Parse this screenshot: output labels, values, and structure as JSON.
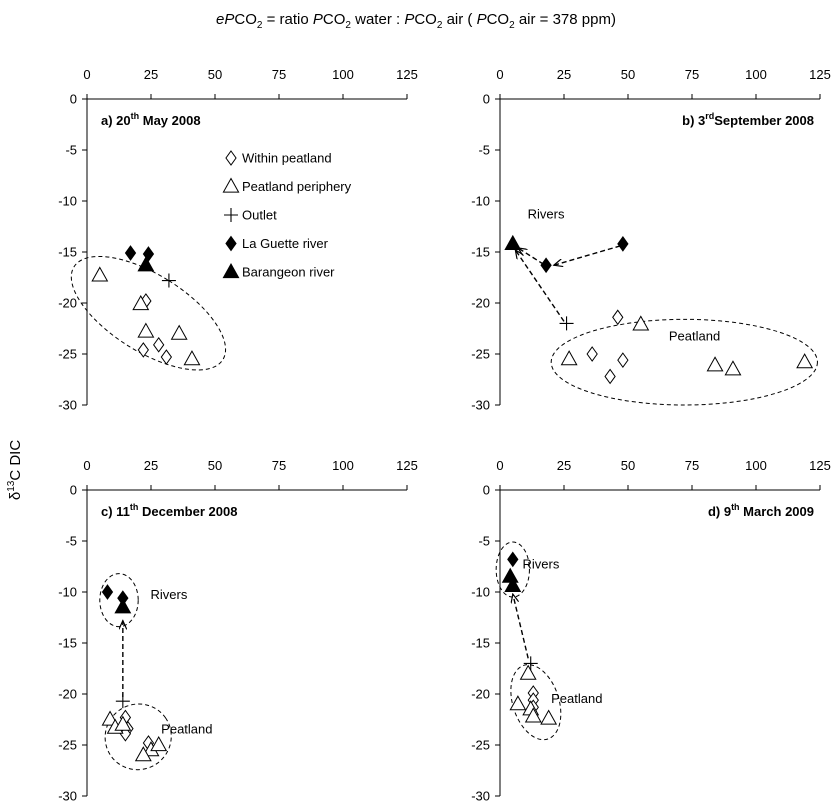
{
  "figure": {
    "title": {
      "p1": "eP",
      "s1": "CO",
      "sub1": "2",
      "s2": " = ratio ",
      "p2": "P",
      "s3": "CO",
      "sub2": "2",
      "s4": " water : ",
      "p3": "P",
      "s5": "CO",
      "sub3": "2",
      "s6": " air ( ",
      "p4": "P",
      "s7": "CO",
      "sub4": "2",
      "s8": " air = 378 ppm)"
    },
    "ylabel": {
      "pre": "δ",
      "sup": "13",
      "post": "C  DIC"
    }
  },
  "chart_data": [
    {
      "type": "scatter",
      "panel": "a",
      "title": {
        "pre": "a) 20",
        "sup": "th",
        "post": "  May 2008"
      },
      "xlim": [
        0,
        125
      ],
      "ylim": [
        -30,
        0
      ],
      "xticks": [
        "0",
        "25",
        "50",
        "75",
        "100",
        "125"
      ],
      "yticks": [
        "0",
        "-5",
        "-10",
        "-15",
        "-20",
        "-25",
        "-30"
      ],
      "legend": [
        {
          "marker": "diamond-open",
          "label": "Within peatland"
        },
        {
          "marker": "triangle-open",
          "label": "Peatland periphery"
        },
        {
          "marker": "plus",
          "label": "Outlet"
        },
        {
          "marker": "diamond-filled",
          "label": "La Guette river"
        },
        {
          "marker": "triangle-filled",
          "label": "Barangeon river"
        }
      ],
      "series": [
        {
          "name": "Within peatland",
          "marker": "diamond-open",
          "points": [
            [
              23,
              -19.8
            ],
            [
              22,
              -24.6
            ],
            [
              28,
              -24.1
            ],
            [
              31,
              -25.3
            ]
          ]
        },
        {
          "name": "Peatland periphery",
          "marker": "triangle-open",
          "points": [
            [
              5,
              -17.3
            ],
            [
              21,
              -20.1
            ],
            [
              23,
              -22.8
            ],
            [
              36,
              -23.0
            ],
            [
              41,
              -25.5
            ]
          ]
        },
        {
          "name": "Outlet",
          "marker": "plus",
          "points": [
            [
              32,
              -17.8
            ]
          ]
        },
        {
          "name": "La Guette river",
          "marker": "diamond-filled",
          "points": [
            [
              17,
              -15.1
            ],
            [
              24,
              -15.2
            ]
          ]
        },
        {
          "name": "Barangeon river",
          "marker": "triangle-filled",
          "points": [
            [
              23,
              -16.3
            ]
          ]
        }
      ],
      "annotations": [],
      "ellipses": [
        {
          "cx": 24,
          "cy": -21,
          "rx": 15,
          "ry": 8.6,
          "rot": -58
        }
      ],
      "arrows": []
    },
    {
      "type": "scatter",
      "panel": "b",
      "title": {
        "pre": "b) 3",
        "sup": "rd",
        "post": "September 2008"
      },
      "xlim": [
        0,
        125
      ],
      "ylim": [
        -30,
        0
      ],
      "xticks": [
        "0",
        "25",
        "50",
        "75",
        "100",
        "125"
      ],
      "yticks": [
        "0",
        "-5",
        "-10",
        "-15",
        "-20",
        "-25",
        "-30"
      ],
      "legend": [],
      "series": [
        {
          "name": "Within peatland",
          "marker": "diamond-open",
          "points": [
            [
              36,
              -25.0
            ],
            [
              43,
              -27.2
            ],
            [
              46,
              -21.4
            ],
            [
              48,
              -25.6
            ]
          ]
        },
        {
          "name": "Peatland periphery",
          "marker": "triangle-open",
          "points": [
            [
              27,
              -25.5
            ],
            [
              55,
              -22.1
            ],
            [
              84,
              -26.1
            ],
            [
              91,
              -26.5
            ],
            [
              119,
              -25.8
            ]
          ]
        },
        {
          "name": "Outlet",
          "marker": "plus",
          "points": [
            [
              26,
              -22.0
            ]
          ]
        },
        {
          "name": "La Guette river",
          "marker": "diamond-filled",
          "points": [
            [
              18,
              -16.3
            ],
            [
              48,
              -14.2
            ]
          ]
        },
        {
          "name": "Barangeon river",
          "marker": "triangle-filled",
          "points": [
            [
              5,
              -14.2
            ]
          ]
        }
      ],
      "annotations": [
        {
          "text": "Rivers",
          "x": 18,
          "y": -11.3
        },
        {
          "text": "Peatland",
          "x": 76,
          "y": -23.3
        }
      ],
      "ellipses": [
        {
          "cx": 72,
          "cy": -25.8,
          "rx": 52,
          "ry": 4.2,
          "rot": 0
        }
      ],
      "arrows": [
        {
          "from": [
            47,
            -14.4
          ],
          "to": [
            21,
            -16.3
          ]
        },
        {
          "from": [
            17,
            -16.2
          ],
          "to": [
            7,
            -14.6
          ]
        },
        {
          "from": [
            25,
            -21.8
          ],
          "to": [
            6,
            -14.8
          ]
        }
      ]
    },
    {
      "type": "scatter",
      "panel": "c",
      "title": {
        "pre": "c) 11",
        "sup": "th",
        "post": "  December 2008"
      },
      "xlim": [
        0,
        125
      ],
      "ylim": [
        -30,
        0
      ],
      "xticks": [
        "0",
        "25",
        "50",
        "75",
        "100",
        "125"
      ],
      "yticks": [
        "0",
        "-5",
        "-10",
        "-15",
        "-20",
        "-25",
        "-30"
      ],
      "legend": [],
      "series": [
        {
          "name": "Within peatland",
          "marker": "diamond-open",
          "points": [
            [
              15,
              -22.3
            ],
            [
              16,
              -23.4
            ],
            [
              15,
              -23.9
            ],
            [
              24,
              -24.8
            ]
          ]
        },
        {
          "name": "Peatland periphery",
          "marker": "triangle-open",
          "points": [
            [
              9,
              -22.5
            ],
            [
              11,
              -23.3
            ],
            [
              14,
              -23.0
            ],
            [
              25,
              -25.5
            ],
            [
              28,
              -25.0
            ],
            [
              22,
              -26.0
            ]
          ]
        },
        {
          "name": "Outlet",
          "marker": "plus",
          "points": [
            [
              14,
              -20.7
            ]
          ]
        },
        {
          "name": "La Guette river",
          "marker": "diamond-filled",
          "points": [
            [
              8,
              -10.0
            ],
            [
              14,
              -10.6
            ]
          ]
        },
        {
          "name": "Barangeon river",
          "marker": "triangle-filled",
          "points": [
            [
              14,
              -11.5
            ]
          ]
        }
      ],
      "annotations": [
        {
          "text": "Rivers",
          "x": 32,
          "y": -10.3
        },
        {
          "text": "Peatland",
          "x": 39,
          "y": -23.5
        }
      ],
      "ellipses": [
        {
          "cx": 12.5,
          "cy": -10.8,
          "rx": 7.5,
          "ry": 2.6,
          "rot": 0
        },
        {
          "cx": 20,
          "cy": -24.2,
          "rx": 13,
          "ry": 3.2,
          "rot": -35
        }
      ],
      "arrows": [
        {
          "from": [
            14,
            -20.3
          ],
          "to": [
            14,
            -12.8
          ]
        }
      ]
    },
    {
      "type": "scatter",
      "panel": "d",
      "title": {
        "pre": "d) 9",
        "sup": "th",
        "post": "  March 2009"
      },
      "xlim": [
        0,
        125
      ],
      "ylim": [
        -30,
        0
      ],
      "xticks": [
        "0",
        "25",
        "50",
        "75",
        "100",
        "125"
      ],
      "yticks": [
        "0",
        "-5",
        "-10",
        "-15",
        "-20",
        "-25",
        "-30"
      ],
      "legend": [],
      "series": [
        {
          "name": "Within peatland",
          "marker": "diamond-open",
          "points": [
            [
              13,
              -19.9
            ],
            [
              13,
              -20.6
            ],
            [
              13,
              -21.3
            ]
          ]
        },
        {
          "name": "Peatland periphery",
          "marker": "triangle-open",
          "points": [
            [
              11,
              -18.0
            ],
            [
              7,
              -21.0
            ],
            [
              12,
              -21.5
            ],
            [
              13,
              -22.2
            ],
            [
              19,
              -22.4
            ]
          ]
        },
        {
          "name": "Outlet",
          "marker": "plus",
          "points": [
            [
              12,
              -17.0
            ]
          ]
        },
        {
          "name": "La Guette river",
          "marker": "diamond-filled",
          "points": [
            [
              5,
              -6.8
            ]
          ]
        },
        {
          "name": "Barangeon river",
          "marker": "triangle-filled",
          "points": [
            [
              4,
              -8.5
            ],
            [
              5,
              -9.4
            ]
          ]
        }
      ],
      "annotations": [
        {
          "text": "Rivers",
          "x": 16,
          "y": -7.3
        },
        {
          "text": "Peatland",
          "x": 30,
          "y": -20.5
        }
      ],
      "ellipses": [
        {
          "cx": 5,
          "cy": -7.8,
          "rx": 6.5,
          "ry": 2.7,
          "rot": 0
        },
        {
          "cx": 14,
          "cy": -20.8,
          "rx": 9,
          "ry": 3.8,
          "rot": -18
        }
      ],
      "arrows": [
        {
          "from": [
            11,
            -16.5
          ],
          "to": [
            5,
            -10.2
          ]
        }
      ]
    }
  ]
}
